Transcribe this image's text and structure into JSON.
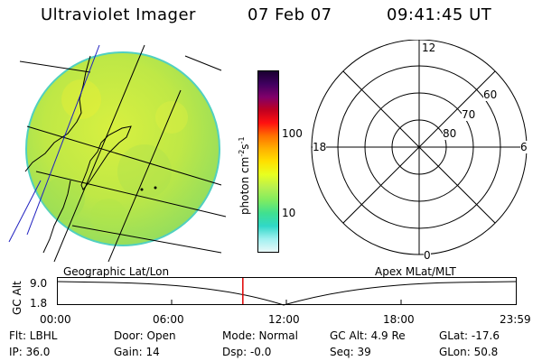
{
  "header": {
    "title": "Ultraviolet Imager",
    "date": "07 Feb 07",
    "time": "09:41:45 UT"
  },
  "colorbar": {
    "label_main": "photon cm",
    "label_exp1": "-2",
    "label_mid": "s",
    "label_exp2": "-1",
    "tick_100": "100",
    "tick_10": "10",
    "colors": [
      "#1a0030",
      "#400060",
      "#80006a",
      "#c00020",
      "#ff1010",
      "#ff7000",
      "#ffb000",
      "#ffe000",
      "#e8ff20",
      "#b8f050",
      "#80ec60",
      "#40e090",
      "#30d8c8",
      "#a0f0f0",
      "#e8f8f8"
    ]
  },
  "polar": {
    "label_top": "12",
    "label_left": "18",
    "label_right": "6",
    "label_bottom": "0",
    "ring_60": "60",
    "ring_70": "70",
    "ring_80": "80"
  },
  "coords": {
    "left": "Geographic Lat/Lon",
    "right": "Apex MLat/MLT"
  },
  "altplot": {
    "ylabel": "GC Alt",
    "ytick_top": "9.0",
    "ytick_bottom": "1.8",
    "xticks": [
      "00:00",
      "06:00",
      "12:00",
      "18:00",
      "23:59"
    ],
    "current_time_fraction": 0.404,
    "cursor_color": "#e00000"
  },
  "info": {
    "flt": "Flt: LBHL",
    "ip": "IP: 36.0",
    "door": "Door: Open",
    "gain": "Gain: 14",
    "mode": "Mode: Normal",
    "dsp": "Dsp:   -0.0",
    "gcalt": "GC Alt: 4.9 Re",
    "seq": "Seq: 39",
    "glat": "GLat: -17.6",
    "glon": "GLon:  50.8"
  }
}
